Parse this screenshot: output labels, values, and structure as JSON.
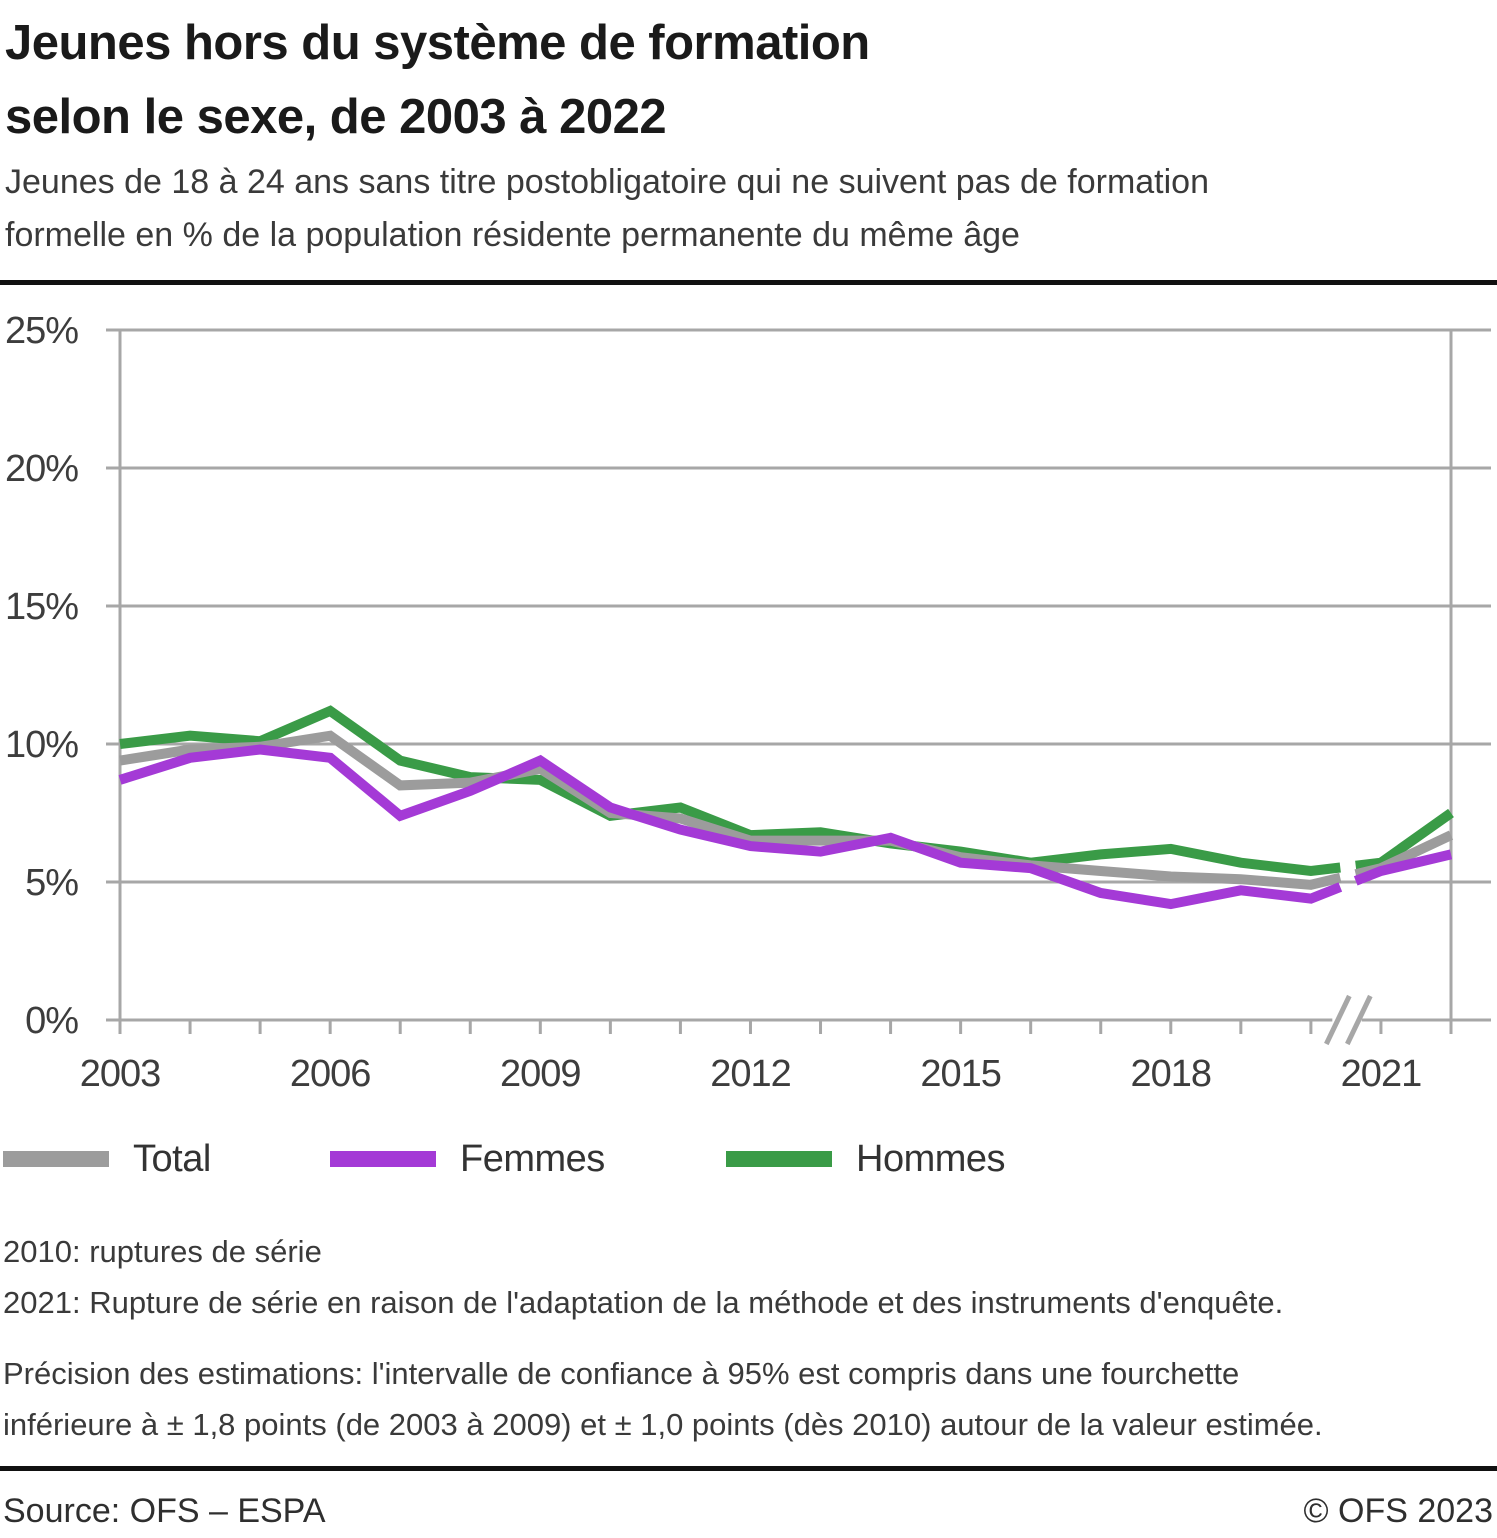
{
  "header": {
    "title_line1": "Jeunes hors du système de formation",
    "title_line2": "selon le sexe, de 2003 à 2022",
    "subtitle_line1": "Jeunes de 18 à 24 ans sans titre postobligatoire qui ne suivent pas de formation",
    "subtitle_line2": "formelle en % de la population résidente permanente du même âge"
  },
  "chart_data": {
    "type": "line",
    "title": "Jeunes hors du système de formation selon le sexe, de 2003 à 2022",
    "xlabel": "",
    "ylabel": "% de la population résidente permanente du même âge",
    "x": [
      2003,
      2004,
      2005,
      2006,
      2007,
      2008,
      2009,
      2010,
      2011,
      2012,
      2013,
      2014,
      2015,
      2016,
      2017,
      2018,
      2019,
      2020,
      2021,
      2022
    ],
    "x_tick_labels": [
      "2003",
      "2006",
      "2009",
      "2012",
      "2015",
      "2018",
      "2021"
    ],
    "y_tick_labels": [
      "0%",
      "5%",
      "10%",
      "15%",
      "20%",
      "25%"
    ],
    "ylim": [
      0,
      25
    ],
    "grid": "horizontal",
    "legend_position": "below",
    "series_break_between": [
      2020,
      2021
    ],
    "break_note": "axis break (//) and gap in all series between 2020 and 2021",
    "series": [
      {
        "name": "Hommes",
        "color": "#3a9b47",
        "values": [
          10.0,
          10.3,
          10.1,
          11.2,
          9.4,
          8.8,
          8.7,
          7.4,
          7.7,
          6.7,
          6.8,
          6.4,
          6.1,
          5.7,
          6.0,
          6.2,
          5.7,
          5.4,
          5.7,
          7.5
        ]
      },
      {
        "name": "Total",
        "color": "#9c9c9c",
        "values": [
          9.4,
          9.8,
          9.9,
          10.3,
          8.5,
          8.6,
          9.1,
          7.5,
          7.3,
          6.5,
          6.5,
          6.5,
          5.9,
          5.6,
          5.4,
          5.2,
          5.1,
          4.9,
          5.5,
          6.7
        ]
      },
      {
        "name": "Femmes",
        "color": "#a43ad6",
        "values": [
          8.7,
          9.5,
          9.8,
          9.5,
          7.4,
          8.3,
          9.4,
          7.7,
          6.9,
          6.3,
          6.1,
          6.6,
          5.7,
          5.5,
          4.6,
          4.2,
          4.7,
          4.4,
          5.4,
          6.0
        ]
      }
    ]
  },
  "legend": [
    {
      "label": "Total",
      "series": "Total"
    },
    {
      "label": "Femmes",
      "series": "Femmes"
    },
    {
      "label": "Hommes",
      "series": "Hommes"
    }
  ],
  "footnotes": {
    "line1": "2010: ruptures de série",
    "line2": "2021: Rupture de série en raison de l'adaptation de la méthode et des instruments d'enquête.",
    "line3": "Précision des estimations: l'intervalle de confiance à 95% est compris dans une fourchette",
    "line4": "inférieure à ± 1,8 points (de 2003 à 2009) et ± 1,0 points (dès 2010) autour de la valeur estimée."
  },
  "footer": {
    "source": "Source: OFS – ESPA",
    "copyright": "© OFS 2023"
  }
}
